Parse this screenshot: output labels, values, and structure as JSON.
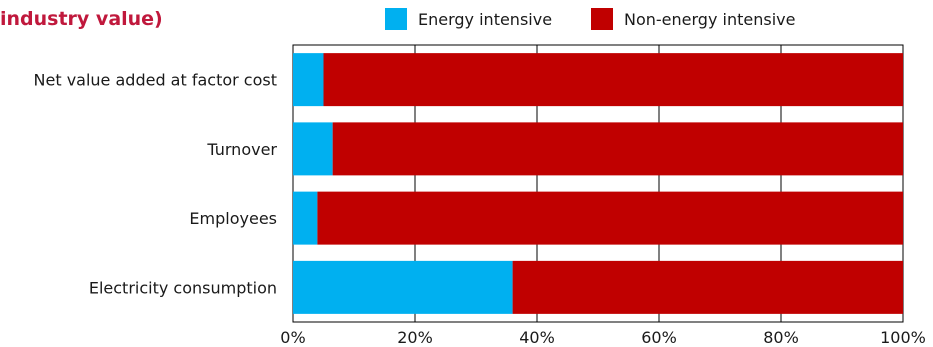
{
  "chart_data": {
    "type": "bar",
    "orientation": "horizontal",
    "stacked": true,
    "title": "industry value)",
    "categories": [
      "Net value added at factor cost",
      "Turnover",
      "Employees",
      "Electricity consumption"
    ],
    "series": [
      {
        "name": "Energy intensive",
        "color": "#00b0f0",
        "values": [
          5,
          6.5,
          4,
          36
        ]
      },
      {
        "name": "Non-energy intensive",
        "color": "#c00000",
        "values": [
          95,
          93.5,
          96,
          64
        ]
      }
    ],
    "xlim": [
      0,
      100
    ],
    "xticks": [
      "0%",
      "20%",
      "40%",
      "60%",
      "80%",
      "100%"
    ],
    "xlabel": "",
    "ylabel": "",
    "grid": true,
    "legend_position": "top"
  }
}
